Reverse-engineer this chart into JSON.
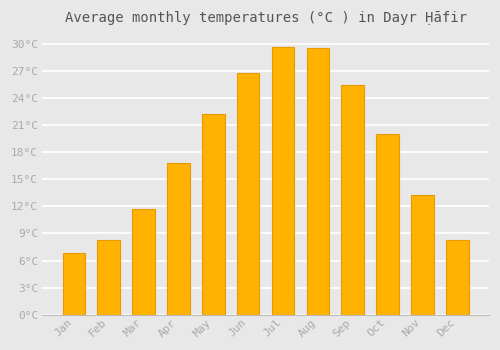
{
  "title": "Average monthly temperatures (°C ) in Dayr Ḥāfir",
  "months": [
    "Jan",
    "Feb",
    "Mar",
    "Apr",
    "May",
    "Jun",
    "Jul",
    "Aug",
    "Sep",
    "Oct",
    "Nov",
    "Dec"
  ],
  "temperatures": [
    6.8,
    8.3,
    11.7,
    16.8,
    22.2,
    26.8,
    29.7,
    29.5,
    25.5,
    20.0,
    13.3,
    8.3
  ],
  "bar_color_top": "#FFC533",
  "bar_color_bottom": "#FFB300",
  "bar_edge_color": "#E89800",
  "background_color": "#e8e8e8",
  "plot_bg_color": "#e8e8e8",
  "ytick_labels": [
    "0°C",
    "3°C",
    "6°C",
    "9°C",
    "12°C",
    "15°C",
    "18°C",
    "21°C",
    "24°C",
    "27°C",
    "30°C"
  ],
  "ytick_values": [
    0,
    3,
    6,
    9,
    12,
    15,
    18,
    21,
    24,
    27,
    30
  ],
  "ylim": [
    0,
    31.5
  ],
  "grid_color": "#ffffff",
  "title_fontsize": 10,
  "tick_fontsize": 8,
  "tick_color": "#aaaaaa"
}
